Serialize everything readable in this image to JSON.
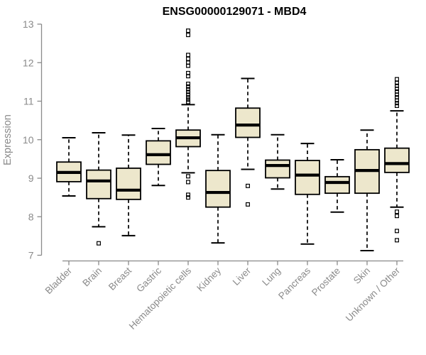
{
  "chart_data": {
    "type": "boxplot",
    "title": "ENSG00000129071 - MBD4",
    "xlabel": "",
    "ylabel": "Expression",
    "ylim": [
      7,
      13
    ],
    "yticks": [
      7,
      8,
      9,
      10,
      11,
      12,
      13
    ],
    "grid": false,
    "legend": "none",
    "categories": [
      "Bladder",
      "Brain",
      "Breast",
      "Gastric",
      "Hematopoietic cells",
      "Kidney",
      "Liver",
      "Lung",
      "Pancreas",
      "Prostate",
      "Skin",
      "Unknown / Other"
    ],
    "series": [
      {
        "name": "Bladder",
        "whisker_low": 8.54,
        "q1": 8.91,
        "median": 9.15,
        "q3": 9.42,
        "whisker_high": 10.05,
        "outliers": []
      },
      {
        "name": "Brain",
        "whisker_low": 7.74,
        "q1": 8.47,
        "median": 8.93,
        "q3": 9.21,
        "whisker_high": 10.18,
        "outliers": [
          7.31
        ]
      },
      {
        "name": "Breast",
        "whisker_low": 7.51,
        "q1": 8.45,
        "median": 8.69,
        "q3": 9.26,
        "whisker_high": 10.12,
        "outliers": []
      },
      {
        "name": "Gastric",
        "whisker_low": 8.81,
        "q1": 9.36,
        "median": 9.61,
        "q3": 9.97,
        "whisker_high": 10.29,
        "outliers": []
      },
      {
        "name": "Hematopoietic cells",
        "whisker_low": 9.14,
        "q1": 9.82,
        "median": 10.05,
        "q3": 10.25,
        "whisker_high": 10.91,
        "outliers": [
          12.83,
          12.72,
          12.2,
          12.1,
          12.0,
          11.92,
          11.73,
          11.65,
          11.45,
          11.38,
          11.31,
          11.24,
          11.17,
          11.1,
          11.04,
          10.98,
          9.05,
          8.9,
          8.57,
          8.5
        ]
      },
      {
        "name": "Kidney",
        "whisker_low": 7.32,
        "q1": 8.25,
        "median": 8.63,
        "q3": 9.2,
        "whisker_high": 10.13,
        "outliers": []
      },
      {
        "name": "Liver",
        "whisker_low": 9.23,
        "q1": 10.06,
        "median": 10.38,
        "q3": 10.82,
        "whisker_high": 11.59,
        "outliers": [
          8.8,
          8.32
        ]
      },
      {
        "name": "Lung",
        "whisker_low": 8.72,
        "q1": 9.01,
        "median": 9.33,
        "q3": 9.47,
        "whisker_high": 10.13,
        "outliers": []
      },
      {
        "name": "Pancreas",
        "whisker_low": 7.29,
        "q1": 8.58,
        "median": 9.08,
        "q3": 9.46,
        "whisker_high": 9.9,
        "outliers": []
      },
      {
        "name": "Prostate",
        "whisker_low": 8.12,
        "q1": 8.61,
        "median": 8.89,
        "q3": 9.04,
        "whisker_high": 9.48,
        "outliers": []
      },
      {
        "name": "Skin",
        "whisker_low": 7.12,
        "q1": 8.61,
        "median": 9.2,
        "q3": 9.74,
        "whisker_high": 10.25,
        "outliers": []
      },
      {
        "name": "Unknown / Other",
        "whisker_low": 8.25,
        "q1": 9.15,
        "median": 9.38,
        "q3": 9.78,
        "whisker_high": 10.75,
        "outliers": [
          11.57,
          11.47,
          11.4,
          11.32,
          11.25,
          11.17,
          11.1,
          11.02,
          10.95,
          10.88,
          8.13,
          8.02,
          7.63,
          7.39
        ]
      }
    ],
    "colors": {
      "box_fill": "#ede7cc",
      "box_stroke": "#000000",
      "median": "#000000",
      "axis": "#8a8a8a",
      "tick_label": "#8a8a8a",
      "title": "#000000",
      "background": "#ffffff"
    }
  }
}
